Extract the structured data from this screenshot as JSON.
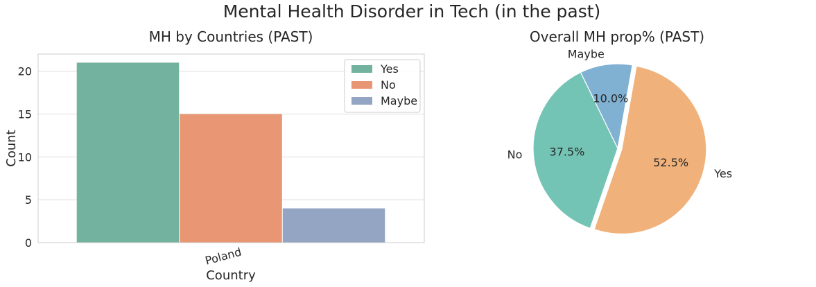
{
  "suptitle": "Mental Health Disorder in Tech (in the past)",
  "chart_data": [
    {
      "type": "bar",
      "title": "MH by Countries (PAST)",
      "xlabel": "Country",
      "ylabel": "Count",
      "categories": [
        "Poland"
      ],
      "series": [
        {
          "name": "Yes",
          "values": [
            21
          ],
          "color": "#73b29e"
        },
        {
          "name": "No",
          "values": [
            15
          ],
          "color": "#e89673"
        },
        {
          "name": "Maybe",
          "values": [
            4
          ],
          "color": "#94a5c4"
        }
      ],
      "ylim": [
        0,
        22
      ],
      "yticks": [
        "0",
        "5",
        "10",
        "15",
        "20"
      ],
      "ytick_values": [
        0,
        5,
        10,
        15,
        20
      ],
      "grid": true,
      "legend": "top-right"
    },
    {
      "type": "pie",
      "title": "Overall MH prop% (PAST)",
      "slices": [
        {
          "label": "Yes",
          "value": 52.5,
          "pct_label": "52.5%",
          "color": "#f0b17a"
        },
        {
          "label": "No",
          "value": 37.5,
          "pct_label": "37.5%",
          "color": "#74c4b5"
        },
        {
          "label": "Maybe",
          "value": 10.0,
          "pct_label": "10.0%",
          "color": "#80b1d3"
        }
      ]
    }
  ]
}
